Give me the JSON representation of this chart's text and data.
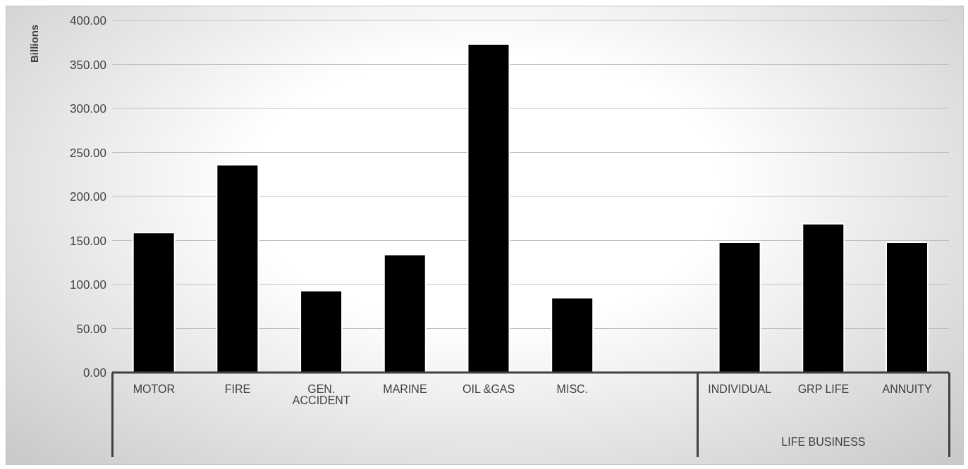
{
  "chart_data": {
    "type": "bar",
    "ylabel": "Billions",
    "categories": [
      "MOTOR",
      "FIRE",
      "GEN. ACCIDENT",
      "MARINE",
      "OIL &GAS",
      "MISC.",
      null,
      "INDIVIDUAL",
      "GRP LIFE",
      "ANNUITY"
    ],
    "values": [
      159,
      236,
      93,
      134,
      373,
      85,
      null,
      148,
      169,
      148
    ],
    "color": "#000000",
    "ylim": [
      0,
      400
    ],
    "yticks": [
      {
        "value": 0,
        "label": "0.00"
      },
      {
        "value": 50,
        "label": "50.00"
      },
      {
        "value": 100,
        "label": "100.00"
      },
      {
        "value": 150,
        "label": "150.00"
      },
      {
        "value": 200,
        "label": "200.00"
      },
      {
        "value": 250,
        "label": "250.00"
      },
      {
        "value": 300,
        "label": "300.00"
      },
      {
        "value": 350,
        "label": "350.00"
      },
      {
        "value": 400,
        "label": "400.00"
      }
    ],
    "grid": "y",
    "annotations": [
      "LIFE BUSINESS"
    ]
  }
}
